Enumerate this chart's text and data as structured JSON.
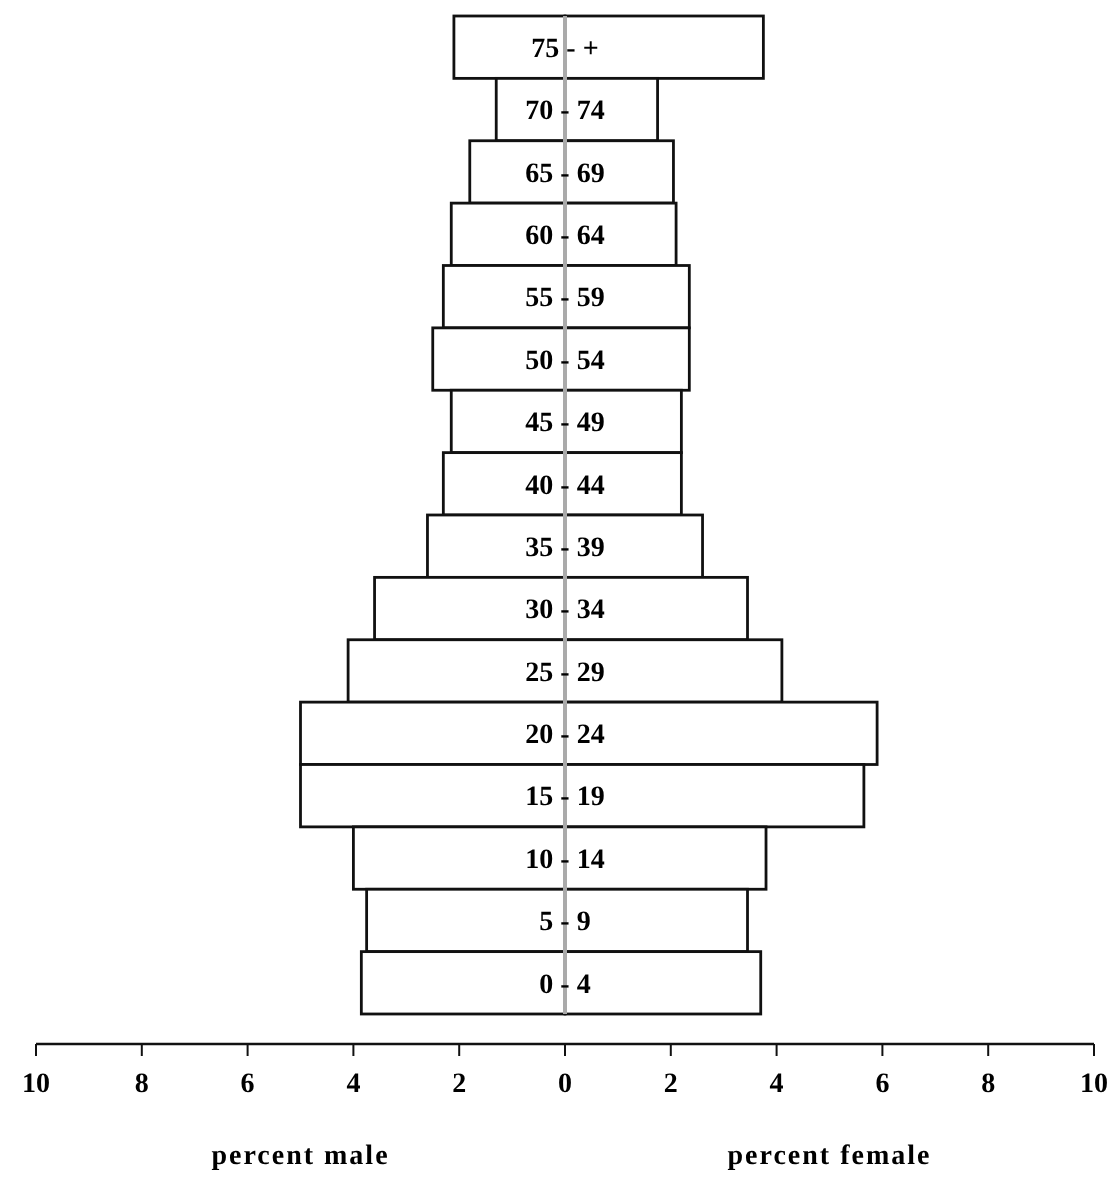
{
  "chart_data": {
    "type": "bar",
    "orientation": "horizontal",
    "stacked": true,
    "categories": [
      "75 - +",
      "70 - 74",
      "65 - 69",
      "60 - 64",
      "55 - 59",
      "50 - 54",
      "45 - 49",
      "40 - 44",
      "35 - 39",
      "30 - 34",
      "25 - 29",
      "20 - 24",
      "15 - 19",
      "10 - 14",
      "5 - 9",
      "0 - 4"
    ],
    "series": [
      {
        "color": "#ffffff",
        "values": [
          -2.1,
          -1.3,
          -1.8,
          -2.15,
          -2.3,
          -2.5,
          -2.15,
          -2.3,
          -2.6,
          -3.6,
          -4.1,
          -5.0,
          -5.0,
          -4.0,
          -3.75,
          -3.85
        ]
      },
      {
        "color": "#ffffff",
        "values": [
          3.75,
          1.75,
          2.05,
          2.1,
          2.35,
          2.35,
          2.2,
          2.2,
          2.6,
          3.45,
          4.1,
          5.9,
          5.65,
          3.8,
          3.45,
          3.7
        ]
      }
    ],
    "xlim": [
      -10,
      10
    ],
    "xticks": [
      {
        "value": -10,
        "label": "10"
      },
      {
        "value": -8,
        "label": "8"
      },
      {
        "value": -6,
        "label": "6"
      },
      {
        "value": -4,
        "label": "4"
      },
      {
        "value": -2,
        "label": "2"
      },
      0,
      2,
      4,
      6,
      8,
      10
    ],
    "annotations": [
      "percent male",
      "percent female"
    ],
    "grid": false
  }
}
